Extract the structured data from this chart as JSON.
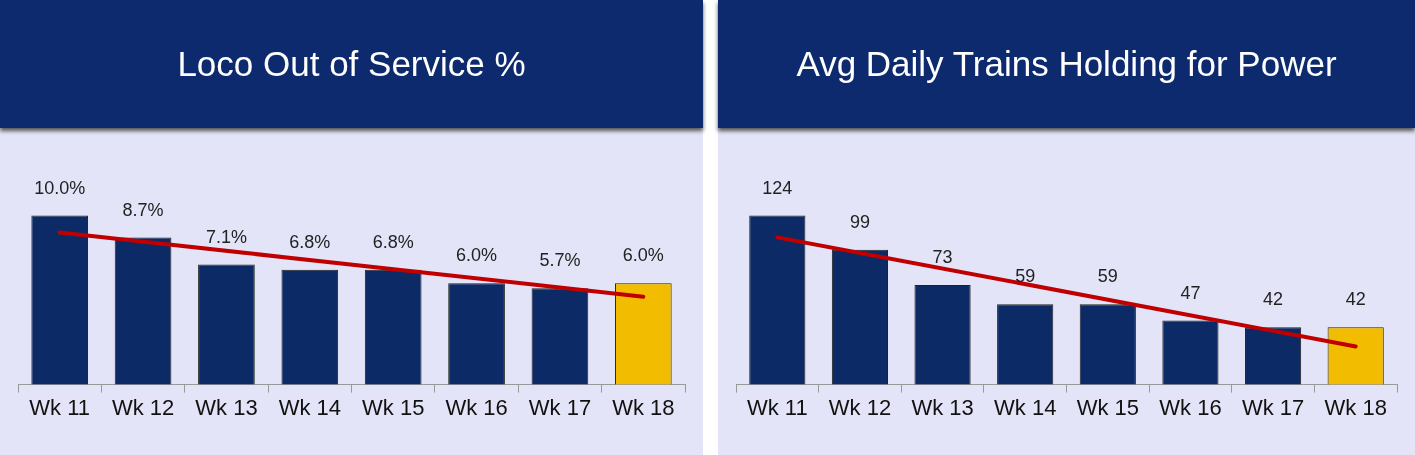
{
  "chart_data": [
    {
      "type": "bar",
      "title": "Loco Out of Service %",
      "categories": [
        "Wk 11",
        "Wk 12",
        "Wk 13",
        "Wk 14",
        "Wk 15",
        "Wk 16",
        "Wk 17",
        "Wk 18"
      ],
      "legend": false,
      "grid": false,
      "tick_labels": "x",
      "series": [
        {
          "values": [
            10.0,
            8.7,
            7.1,
            6.8,
            6.8,
            6.0,
            5.7,
            6.0
          ],
          "colors": [
            "#0b2a66",
            "#0b2a66",
            "#0b2a66",
            "#0b2a66",
            "#0b2a66",
            "#0b2a66",
            "#0b2a66",
            "#f2bd00"
          ],
          "value_labels": [
            "10.0%",
            "8.7%",
            "7.1%",
            "6.8%",
            "6.8%",
            "6.0%",
            "5.7%",
            "6.0%"
          ]
        },
        {
          "type": "line",
          "x": [
            "Wk 11",
            "Wk 18"
          ],
          "values": [
            9.0,
            5.2
          ],
          "color": "#c00000",
          "marker": "none"
        }
      ]
    },
    {
      "type": "bar",
      "title": "Avg Daily Trains Holding for Power",
      "categories": [
        "Wk 11",
        "Wk 12",
        "Wk 13",
        "Wk 14",
        "Wk 15",
        "Wk 16",
        "Wk 17",
        "Wk 18"
      ],
      "legend": false,
      "grid": false,
      "tick_labels": "x",
      "series": [
        {
          "values": [
            124,
            99,
            73,
            59,
            59,
            47,
            42,
            42
          ],
          "colors": [
            "#0b2a66",
            "#0b2a66",
            "#0b2a66",
            "#0b2a66",
            "#0b2a66",
            "#0b2a66",
            "#0b2a66",
            "#f2bd00"
          ],
          "value_labels": [
            "124",
            "99",
            "73",
            "59",
            "59",
            "47",
            "42",
            "42"
          ]
        },
        {
          "type": "line",
          "x": [
            "Wk 11",
            "Wk 18"
          ],
          "values": [
            108,
            28
          ],
          "color": "#c00000",
          "marker": "none"
        }
      ]
    }
  ]
}
